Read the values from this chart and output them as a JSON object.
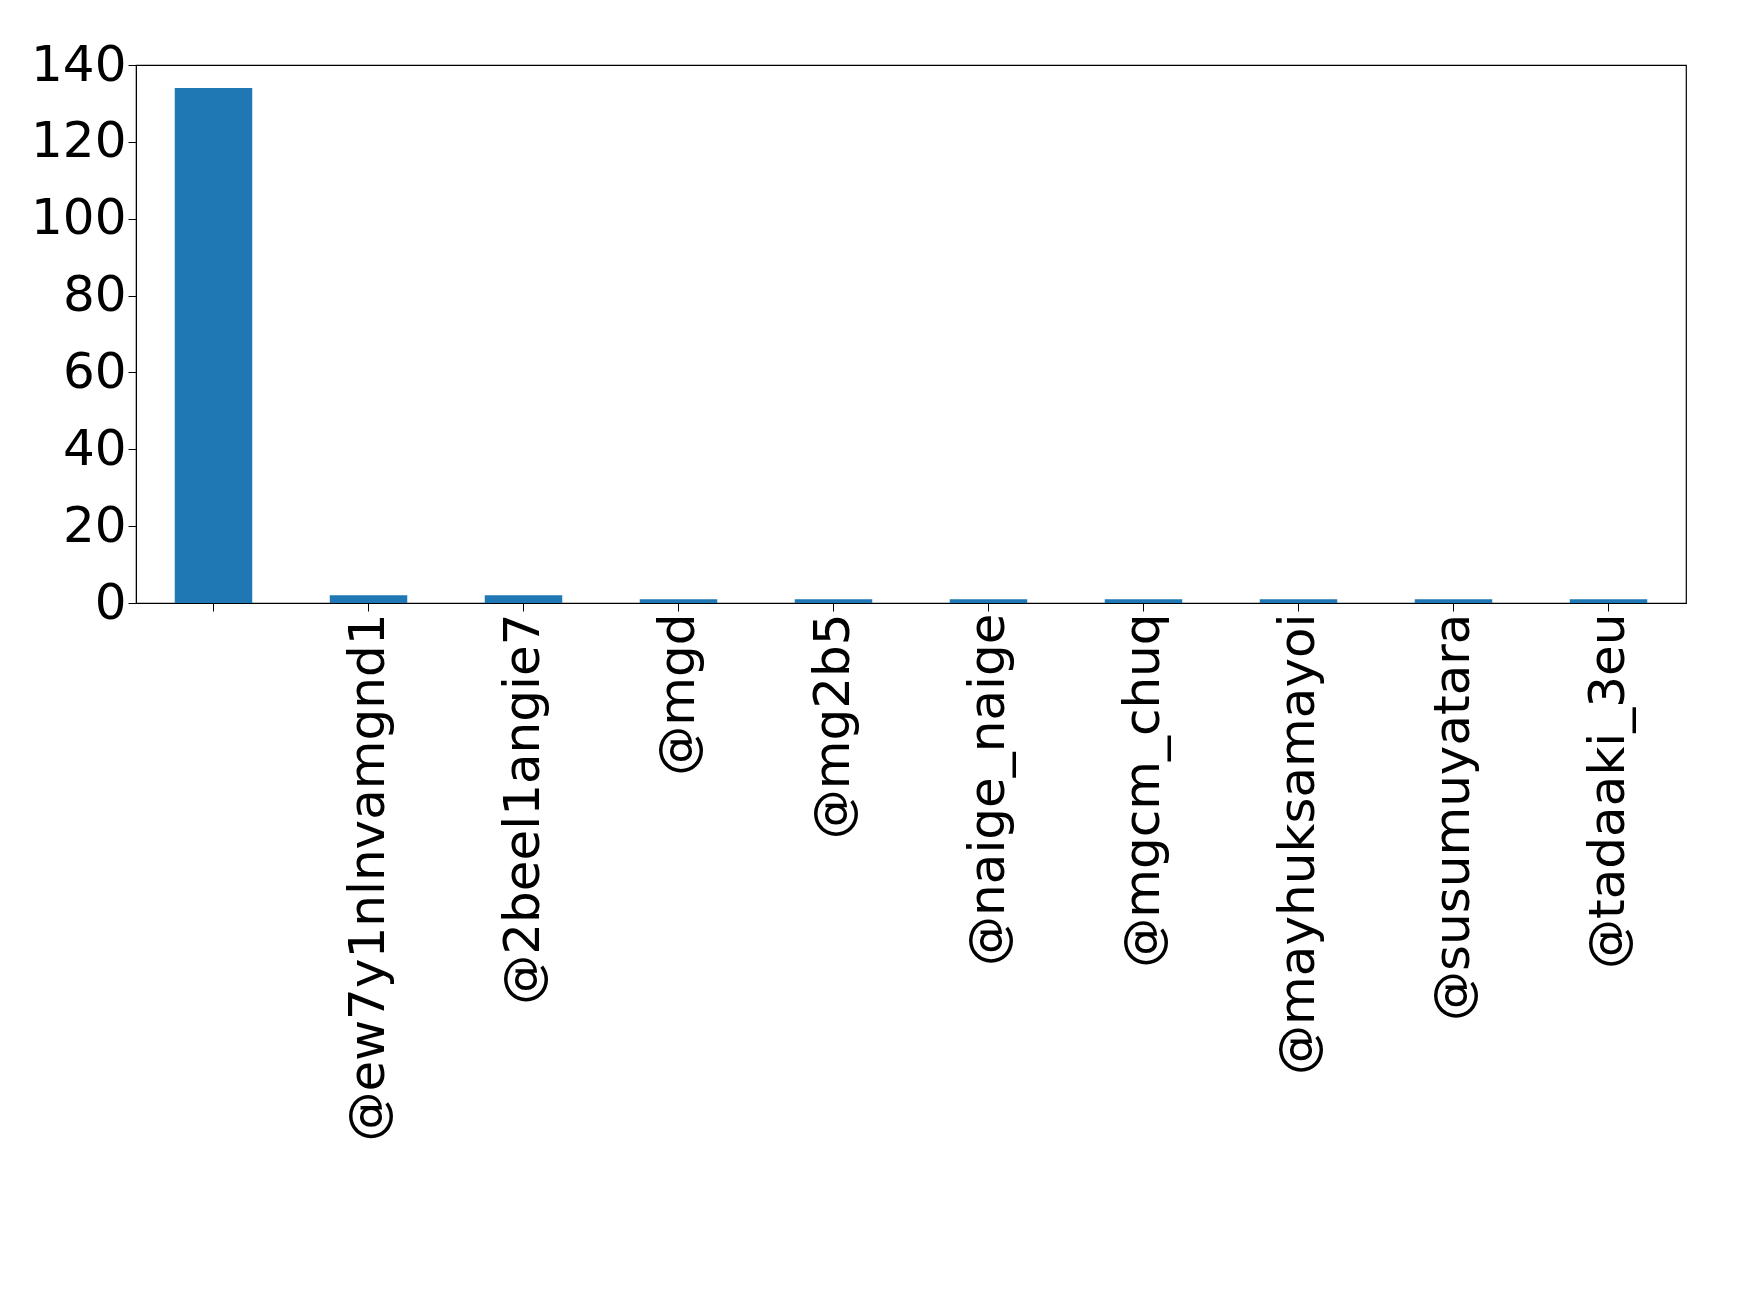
{
  "chart_data": {
    "type": "bar",
    "categories": [
      null,
      "@ew7y1nlnvamgnd1",
      "@2beel1angie7",
      "@mgd",
      "@mg2b5",
      "@naige_naige",
      "@mgcm_chuq",
      "@mayhuksamayoi",
      "@susumuyatara",
      "@tadaaki_3eu"
    ],
    "values": [
      134,
      2,
      2,
      1,
      1,
      1,
      1,
      1,
      1,
      1
    ],
    "color": "#1f77b4",
    "ylim": [
      0,
      140
    ],
    "yticks": [
      0,
      20,
      40,
      60,
      80,
      100,
      120,
      140
    ],
    "grid": false
  }
}
